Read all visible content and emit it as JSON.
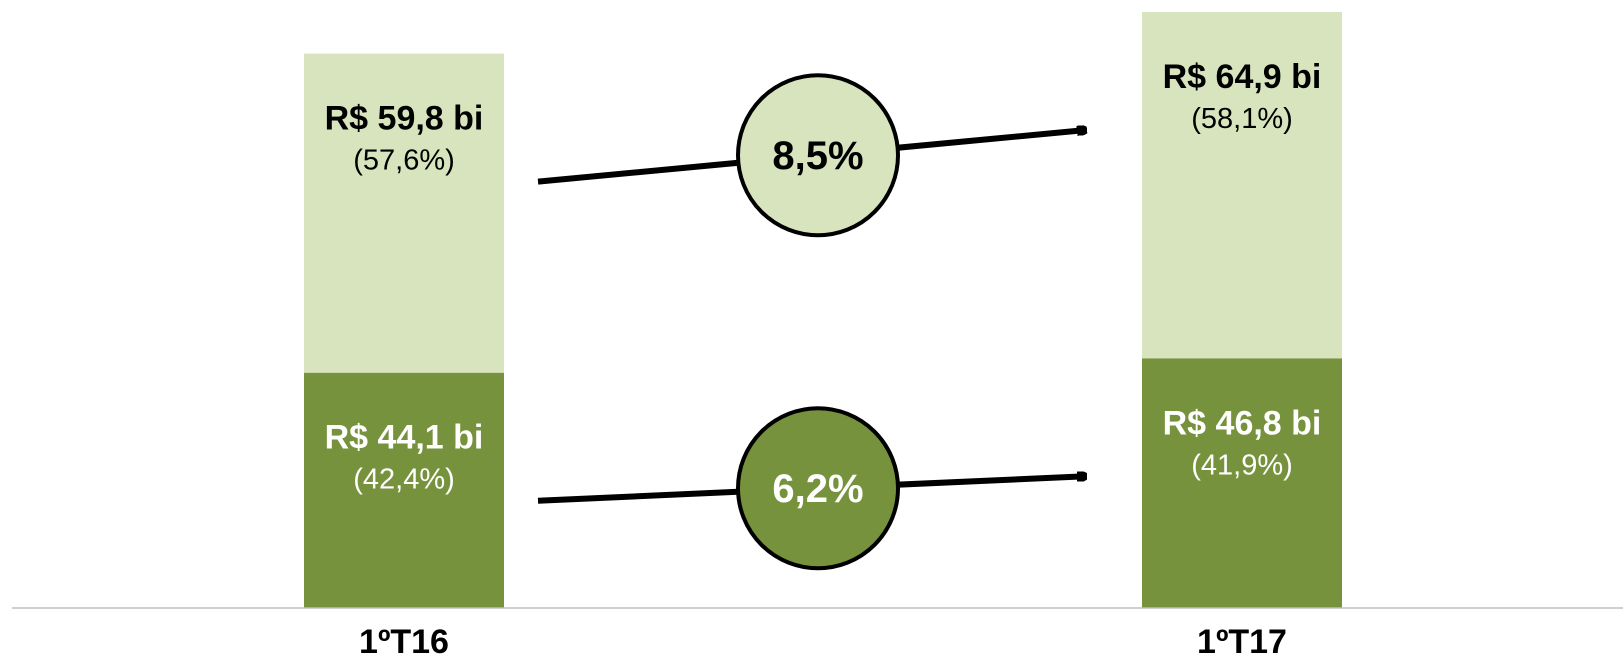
{
  "chart_data": {
    "type": "bar",
    "stacked": true,
    "categories": [
      "1ºT16",
      "1ºT17"
    ],
    "series": [
      {
        "values": [
          44.1,
          46.8
        ],
        "value_labels": [
          "R$ 44,1 bi",
          "R$ 46,8 bi"
        ],
        "share_labels": [
          "(42,4%)",
          "(41,9%)"
        ],
        "color": "#77923c",
        "text_color": "#ffffff"
      },
      {
        "values": [
          59.8,
          64.9
        ],
        "value_labels": [
          "R$ 59,8 bi",
          "R$ 64,9 bi"
        ],
        "share_labels": [
          "(57,6%)",
          "(58,1%)"
        ],
        "color": "#d7e4bd",
        "text_color": "#000000"
      }
    ],
    "growth": [
      {
        "label": "6,2%",
        "fill": "#77923c",
        "text_color": "#ffffff"
      },
      {
        "label": "8,5%",
        "fill": "#d7e4bd",
        "text_color": "#000000"
      }
    ],
    "title": "",
    "xlabel": "",
    "ylabel": "",
    "ylim": [
      0,
      111.7
    ],
    "grid": false,
    "legend": "none",
    "baseline_color": "#bfbfbf"
  }
}
